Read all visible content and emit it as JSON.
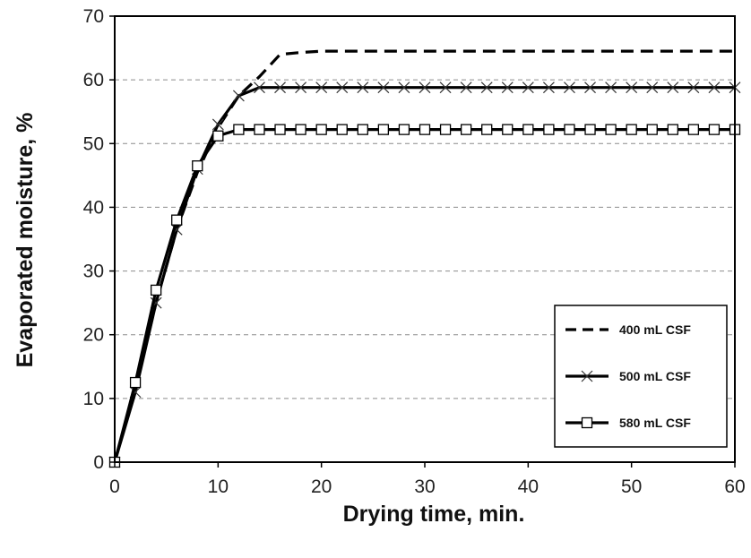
{
  "chart_data": {
    "type": "line",
    "xlabel": "Drying time, min.",
    "ylabel": "Evaporated moisture, %",
    "xlim": [
      0,
      60
    ],
    "ylim": [
      0,
      70
    ],
    "x_ticks": [
      0,
      10,
      20,
      30,
      40,
      50,
      60
    ],
    "y_ticks": [
      0,
      10,
      20,
      30,
      40,
      50,
      60,
      70
    ],
    "grid": "horizontal dashed",
    "legend_position": "bottom-right",
    "series": [
      {
        "name": "400 mL CSF",
        "style": "dashed",
        "marker": "none",
        "color": "#000000",
        "x": [
          0,
          2,
          4,
          6,
          8,
          10,
          12,
          14,
          16,
          18,
          20,
          30,
          40,
          50,
          60
        ],
        "y": [
          0,
          11.5,
          25,
          36.5,
          45.5,
          52.5,
          57.5,
          60.5,
          64,
          64.3,
          64.5,
          64.5,
          64.5,
          64.5,
          64.5
        ]
      },
      {
        "name": "500 mL CSF",
        "style": "solid",
        "marker": "x",
        "color": "#000000",
        "x": [
          0,
          2,
          4,
          6,
          8,
          10,
          12,
          14,
          16,
          18,
          20,
          22,
          24,
          26,
          28,
          30,
          32,
          34,
          36,
          38,
          40,
          42,
          44,
          46,
          48,
          50,
          52,
          54,
          56,
          58,
          60
        ],
        "y": [
          0,
          11,
          25,
          36.5,
          46,
          53,
          57.5,
          58.8,
          58.8,
          58.8,
          58.8,
          58.8,
          58.8,
          58.8,
          58.8,
          58.8,
          58.8,
          58.8,
          58.8,
          58.8,
          58.8,
          58.8,
          58.8,
          58.8,
          58.8,
          58.8,
          58.8,
          58.8,
          58.8,
          58.8,
          58.8
        ]
      },
      {
        "name": "580 mL CSF",
        "style": "solid",
        "marker": "square",
        "color": "#000000",
        "x": [
          0,
          2,
          4,
          6,
          8,
          10,
          12,
          14,
          16,
          18,
          20,
          22,
          24,
          26,
          28,
          30,
          32,
          34,
          36,
          38,
          40,
          42,
          44,
          46,
          48,
          50,
          52,
          54,
          56,
          58,
          60
        ],
        "y": [
          0,
          12.5,
          27,
          38,
          46.5,
          51.2,
          52.2,
          52.2,
          52.2,
          52.2,
          52.2,
          52.2,
          52.2,
          52.2,
          52.2,
          52.2,
          52.2,
          52.2,
          52.2,
          52.2,
          52.2,
          52.2,
          52.2,
          52.2,
          52.2,
          52.2,
          52.2,
          52.2,
          52.2,
          52.2,
          52.2
        ]
      }
    ]
  }
}
